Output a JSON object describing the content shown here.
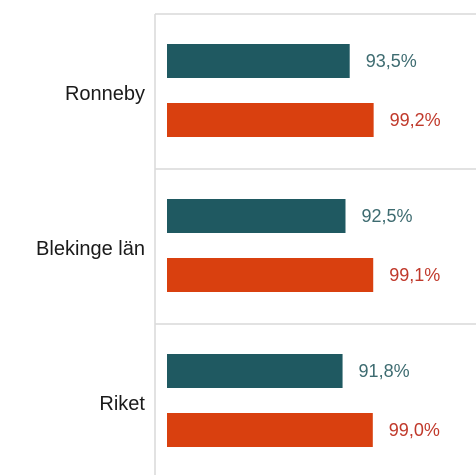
{
  "chart_data": {
    "type": "bar",
    "orientation": "horizontal",
    "categories": [
      "Ronneby",
      "Blekinge län",
      "Riket"
    ],
    "series": [
      {
        "values": [
          93.5,
          92.5,
          91.8
        ],
        "labels": [
          "93,5%",
          "92,5%",
          "91,8%"
        ],
        "color": "#1f5961",
        "label_color": "#3d6b70"
      },
      {
        "values": [
          99.2,
          99.1,
          99.0
        ],
        "labels": [
          "99,2%",
          "99,1%",
          "99,0%"
        ],
        "color": "#d9400f",
        "label_color": "#c0392b"
      }
    ],
    "xlim": [
      50,
      100
    ],
    "grid": "horizontal separators between categories",
    "legend": "none"
  }
}
